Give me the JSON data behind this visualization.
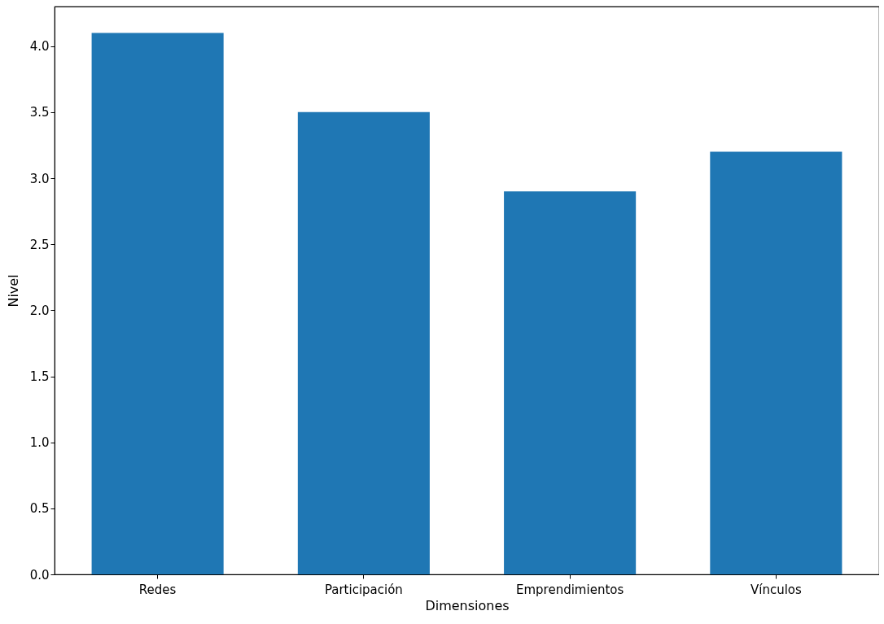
{
  "chart_data": {
    "type": "bar",
    "xlabel": "Dimensiones",
    "ylabel": "Nivel",
    "categories": [
      "Redes",
      "Participación",
      "Emprendimientos",
      "Vínculos"
    ],
    "values": [
      4.1,
      3.5,
      2.9,
      3.2
    ],
    "color": "#1f77b4",
    "ylim": [
      0,
      4.3
    ],
    "yticks": [
      {
        "value": 0,
        "label": "0.0"
      },
      0.5,
      {
        "value": 1,
        "label": "1.0"
      },
      1.5,
      {
        "value": 2,
        "label": "2.0"
      },
      2.5,
      {
        "value": 3,
        "label": "3.0"
      },
      3.5,
      {
        "value": 4,
        "label": "4.0"
      }
    ],
    "grid": false
  }
}
